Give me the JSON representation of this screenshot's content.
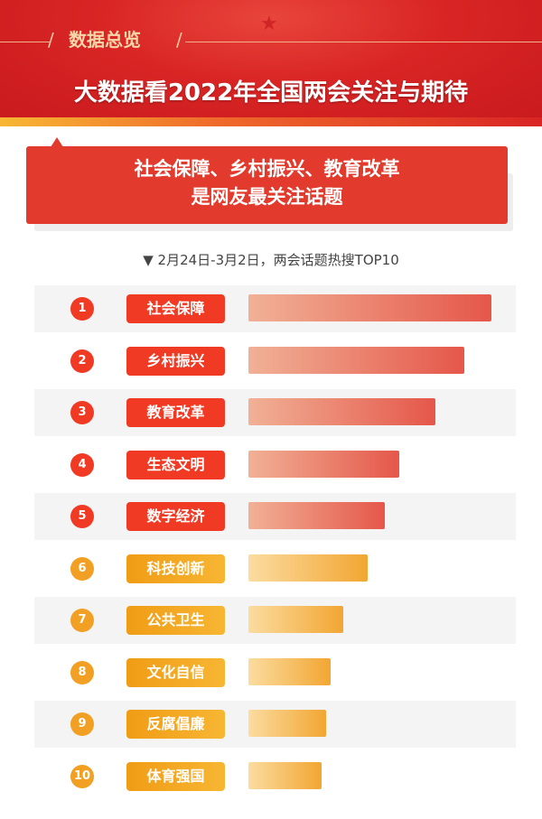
{
  "header": {
    "kicker": "数据总览",
    "title": "大数据看2022年全国两会关注与期待"
  },
  "callout": {
    "line1": "社会保障、乡村振兴、教育改革",
    "line2": "是网友最关注话题"
  },
  "chart_data": {
    "type": "bar",
    "orientation": "horizontal",
    "title": "▼ 2月24日-3月2日，两会话题热搜TOP10",
    "ranks": [
      "1",
      "2",
      "3",
      "4",
      "5",
      "6",
      "7",
      "8",
      "9",
      "10"
    ],
    "categories": [
      "社会保障",
      "乡村振兴",
      "教育改革",
      "生态文明",
      "数字经济",
      "科技创新",
      "公共卫生",
      "文化自信",
      "反腐倡廉",
      "体育强国"
    ],
    "values": [
      100,
      89,
      77,
      62,
      56,
      49,
      39,
      34,
      32,
      30
    ],
    "value_unit": "relative % of top topic (estimated, no values printed)",
    "colors": {
      "top5": "#f03a24",
      "rest": "#f1a023"
    }
  }
}
